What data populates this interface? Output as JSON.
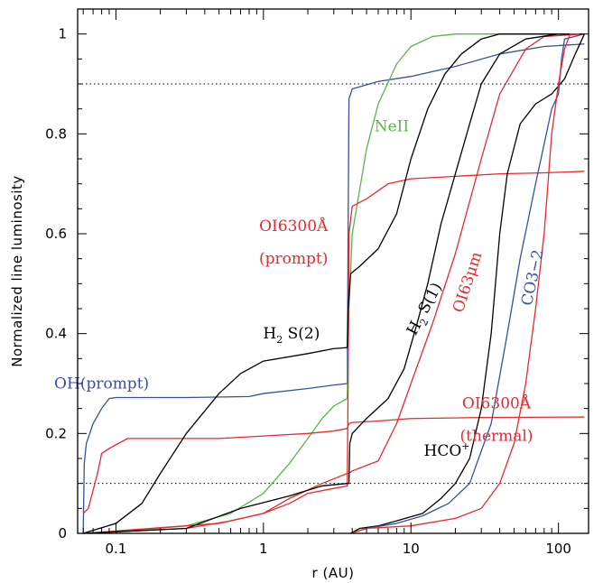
{
  "chart_data": {
    "type": "line",
    "xlabel": "r (AU)",
    "ylabel": "Normalized line luminosity",
    "xscale": "log",
    "xlim": [
      0.055,
      160
    ],
    "ylim": [
      0,
      1.05
    ],
    "x_ticks": [
      0.1,
      1,
      10,
      100
    ],
    "x_tick_labels": [
      "0.1",
      "1",
      "10",
      "100"
    ],
    "y_ticks": [
      0,
      0.2,
      0.4,
      0.6,
      0.8,
      1
    ],
    "y_tick_labels": [
      "0",
      "0.2",
      "0.4",
      "0.6",
      "0.8",
      "1"
    ],
    "reference_lines": [
      0.1,
      0.9
    ],
    "grid": false,
    "legend": "none",
    "colors": {
      "red": "#e8292e",
      "green": "#5cb44a",
      "blue": "#3a4fa0",
      "black": "#000000"
    },
    "series": [
      {
        "color": "blue",
        "points": [
          [
            0.06,
            0
          ],
          [
            0.061,
            0.14
          ],
          [
            0.063,
            0.18
          ],
          [
            0.07,
            0.22
          ],
          [
            0.08,
            0.25
          ],
          [
            0.09,
            0.27
          ],
          [
            0.1,
            0.272
          ],
          [
            0.3,
            0.272
          ],
          [
            0.8,
            0.274
          ],
          [
            1,
            0.28
          ],
          [
            2,
            0.29
          ],
          [
            3,
            0.297
          ],
          [
            3.7,
            0.3
          ],
          [
            3.75,
            0.6
          ],
          [
            3.8,
            0.87
          ],
          [
            4,
            0.89
          ],
          [
            6,
            0.905
          ],
          [
            10,
            0.915
          ],
          [
            20,
            0.935
          ],
          [
            40,
            0.96
          ],
          [
            80,
            0.975
          ],
          [
            150,
            0.98
          ]
        ]
      },
      {
        "color": "green",
        "points": [
          [
            0.06,
            0
          ],
          [
            0.1,
            0.003
          ],
          [
            0.3,
            0.015
          ],
          [
            0.6,
            0.04
          ],
          [
            1,
            0.08
          ],
          [
            1.5,
            0.14
          ],
          [
            2,
            0.19
          ],
          [
            2.5,
            0.23
          ],
          [
            3,
            0.255
          ],
          [
            3.7,
            0.27
          ],
          [
            3.8,
            0.45
          ],
          [
            4,
            0.6
          ],
          [
            5,
            0.77
          ],
          [
            6,
            0.86
          ],
          [
            8,
            0.94
          ],
          [
            10,
            0.975
          ],
          [
            14,
            0.995
          ],
          [
            20,
            1
          ],
          [
            150,
            1
          ]
        ]
      },
      {
        "color": "red",
        "points": [
          [
            0.06,
            0
          ],
          [
            0.1,
            0.003
          ],
          [
            0.3,
            0.01
          ],
          [
            0.6,
            0.025
          ],
          [
            1,
            0.04
          ],
          [
            1.5,
            0.06
          ],
          [
            2,
            0.08
          ],
          [
            3,
            0.09
          ],
          [
            3.7,
            0.095
          ],
          [
            3.75,
            0.3
          ],
          [
            3.8,
            0.6
          ],
          [
            4,
            0.655
          ],
          [
            5,
            0.67
          ],
          [
            7,
            0.7
          ],
          [
            10,
            0.71
          ],
          [
            20,
            0.715
          ],
          [
            40,
            0.72
          ],
          [
            80,
            0.722
          ],
          [
            150,
            0.725
          ]
        ]
      },
      {
        "color": "red",
        "points": [
          [
            0.06,
            0.04
          ],
          [
            0.065,
            0.05
          ],
          [
            0.075,
            0.12
          ],
          [
            0.08,
            0.16
          ],
          [
            0.09,
            0.17
          ],
          [
            0.12,
            0.19
          ],
          [
            0.5,
            0.19
          ],
          [
            1,
            0.195
          ],
          [
            2,
            0.2
          ],
          [
            3,
            0.205
          ],
          [
            3.7,
            0.21
          ],
          [
            3.8,
            0.22
          ],
          [
            4,
            0.222
          ],
          [
            6,
            0.225
          ],
          [
            10,
            0.23
          ],
          [
            30,
            0.232
          ],
          [
            150,
            0.233
          ]
        ]
      },
      {
        "color": "black",
        "points": [
          [
            0.06,
            0
          ],
          [
            0.1,
            0.02
          ],
          [
            0.15,
            0.06
          ],
          [
            0.2,
            0.12
          ],
          [
            0.3,
            0.2
          ],
          [
            0.5,
            0.28
          ],
          [
            0.7,
            0.32
          ],
          [
            1,
            0.345
          ],
          [
            2,
            0.36
          ],
          [
            3,
            0.37
          ],
          [
            3.7,
            0.372
          ],
          [
            3.75,
            0.45
          ],
          [
            3.9,
            0.52
          ],
          [
            4.5,
            0.535
          ],
          [
            6,
            0.57
          ],
          [
            8,
            0.64
          ],
          [
            10,
            0.75
          ],
          [
            13,
            0.85
          ],
          [
            17,
            0.92
          ],
          [
            22,
            0.96
          ],
          [
            30,
            0.99
          ],
          [
            40,
            1
          ],
          [
            150,
            1
          ]
        ]
      },
      {
        "color": "red",
        "points": [
          [
            0.06,
            0
          ],
          [
            0.5,
            0.02
          ],
          [
            1,
            0.04
          ],
          [
            1.5,
            0.07
          ],
          [
            2.5,
            0.1
          ],
          [
            3.7,
            0.12
          ],
          [
            3.8,
            0.12
          ],
          [
            4,
            0.125
          ],
          [
            6,
            0.145
          ],
          [
            8,
            0.22
          ],
          [
            10,
            0.3
          ],
          [
            14,
            0.42
          ],
          [
            20,
            0.56
          ],
          [
            30,
            0.75
          ],
          [
            40,
            0.88
          ],
          [
            60,
            0.97
          ],
          [
            80,
            0.995
          ],
          [
            150,
            1
          ]
        ]
      },
      {
        "color": "black",
        "points": [
          [
            0.06,
            0
          ],
          [
            0.3,
            0.01
          ],
          [
            0.7,
            0.05
          ],
          [
            1.5,
            0.075
          ],
          [
            2.5,
            0.095
          ],
          [
            3.7,
            0.1
          ],
          [
            3.8,
            0.1
          ],
          [
            3.85,
            0.18
          ],
          [
            4,
            0.2
          ],
          [
            5,
            0.23
          ],
          [
            7,
            0.27
          ],
          [
            9,
            0.33
          ],
          [
            11,
            0.42
          ],
          [
            13,
            0.5
          ],
          [
            16,
            0.62
          ],
          [
            20,
            0.72
          ],
          [
            25,
            0.82
          ],
          [
            30,
            0.9
          ],
          [
            40,
            0.96
          ],
          [
            60,
            0.99
          ],
          [
            100,
            1
          ],
          [
            150,
            1
          ]
        ]
      },
      {
        "color": "black",
        "points": [
          [
            3.9,
            0
          ],
          [
            4.5,
            0.01
          ],
          [
            6,
            0.015
          ],
          [
            8,
            0.025
          ],
          [
            12,
            0.04
          ],
          [
            16,
            0.07
          ],
          [
            20,
            0.1
          ],
          [
            25,
            0.15
          ],
          [
            30,
            0.25
          ],
          [
            35,
            0.4
          ],
          [
            40,
            0.6
          ],
          [
            45,
            0.72
          ],
          [
            55,
            0.82
          ],
          [
            70,
            0.86
          ],
          [
            90,
            0.88
          ],
          [
            110,
            0.91
          ],
          [
            130,
            0.96
          ],
          [
            150,
            1
          ]
        ]
      },
      {
        "color": "blue",
        "points": [
          [
            3.9,
            0
          ],
          [
            5,
            0.01
          ],
          [
            8,
            0.02
          ],
          [
            12,
            0.035
          ],
          [
            18,
            0.06
          ],
          [
            25,
            0.1
          ],
          [
            35,
            0.22
          ],
          [
            45,
            0.4
          ],
          [
            55,
            0.55
          ],
          [
            70,
            0.7
          ],
          [
            90,
            0.85
          ],
          [
            100,
            0.88
          ],
          [
            105,
            0.95
          ],
          [
            110,
            0.99
          ],
          [
            150,
            1
          ]
        ]
      },
      {
        "color": "red",
        "points": [
          [
            3.9,
            0
          ],
          [
            5,
            0.01
          ],
          [
            10,
            0.015
          ],
          [
            20,
            0.03
          ],
          [
            30,
            0.05
          ],
          [
            40,
            0.1
          ],
          [
            50,
            0.18
          ],
          [
            60,
            0.3
          ],
          [
            70,
            0.45
          ],
          [
            80,
            0.6
          ],
          [
            90,
            0.8
          ],
          [
            100,
            0.9
          ],
          [
            110,
            0.97
          ],
          [
            120,
            1
          ],
          [
            150,
            1
          ]
        ]
      }
    ],
    "annotations": [
      {
        "text": "NeII",
        "color": "green",
        "x": 7.4,
        "y": 0.805,
        "rotate": 0
      },
      {
        "text": "OI6300Å",
        "color": "red",
        "x": 1.6,
        "y": 0.605,
        "rotate": 0
      },
      {
        "text": "(prompt)",
        "color": "red",
        "x": 1.6,
        "y": 0.54,
        "rotate": 0
      },
      {
        "text": "H",
        "sub": "2",
        "rest": " S(2)",
        "color": "black",
        "x": 1.55,
        "y": 0.39,
        "rotate": 0
      },
      {
        "text": "OH(prompt)",
        "color": "blue",
        "x": 0.08,
        "y": 0.29,
        "rotate": 0
      },
      {
        "text": "H",
        "sub": "2",
        "rest": " S(1)",
        "color": "black",
        "x": 13.2,
        "y": 0.445,
        "rotate": -62
      },
      {
        "text": "OI63μm",
        "color": "red",
        "x": 26,
        "y": 0.5,
        "rotate": -72
      },
      {
        "text": "CO3−2",
        "color": "blue",
        "x": 72,
        "y": 0.51,
        "rotate": -78
      },
      {
        "text": "OI6300Å",
        "color": "red",
        "x": 38,
        "y": 0.25,
        "rotate": 0
      },
      {
        "text": "(thermal)",
        "color": "red",
        "x": 38,
        "y": 0.185,
        "rotate": 0
      },
      {
        "text": "HCO",
        "sup": "+",
        "color": "black",
        "x": 17.5,
        "y": 0.155,
        "rotate": 0
      }
    ]
  }
}
